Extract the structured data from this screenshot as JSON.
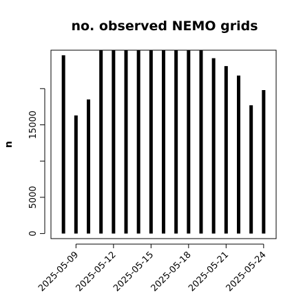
{
  "chart_data": {
    "type": "bar",
    "title": "no. observed NEMO grids",
    "ylabel": "n",
    "xlabel": "",
    "categories": [
      "2025-05-08",
      "2025-05-09",
      "2025-05-10",
      "2025-05-11",
      "2025-05-12",
      "2025-05-13",
      "2025-05-14",
      "2025-05-15",
      "2025-05-16",
      "2025-05-17",
      "2025-05-18",
      "2025-05-19",
      "2025-05-20",
      "2025-05-21",
      "2025-05-22",
      "2025-05-23",
      "2025-05-24"
    ],
    "values": [
      24600,
      16300,
      18500,
      25300,
      25300,
      25300,
      25300,
      25300,
      25300,
      25300,
      25300,
      25300,
      24200,
      23100,
      21800,
      17700,
      19800
    ],
    "x_tick_labels": [
      "2025-05-09",
      "2025-05-12",
      "2025-05-15",
      "2025-05-18",
      "2025-05-21",
      "2025-05-24"
    ],
    "y_ticks": [
      0,
      5000,
      10000,
      15000,
      20000
    ],
    "y_tick_labels": [
      "0",
      "5000",
      "",
      "15000",
      ""
    ],
    "ylim": [
      -700,
      25300
    ],
    "xlim": [
      "2025-05-07",
      "2025-05-25"
    ],
    "grid": false,
    "legend": "none",
    "bar_color": "#000000"
  }
}
